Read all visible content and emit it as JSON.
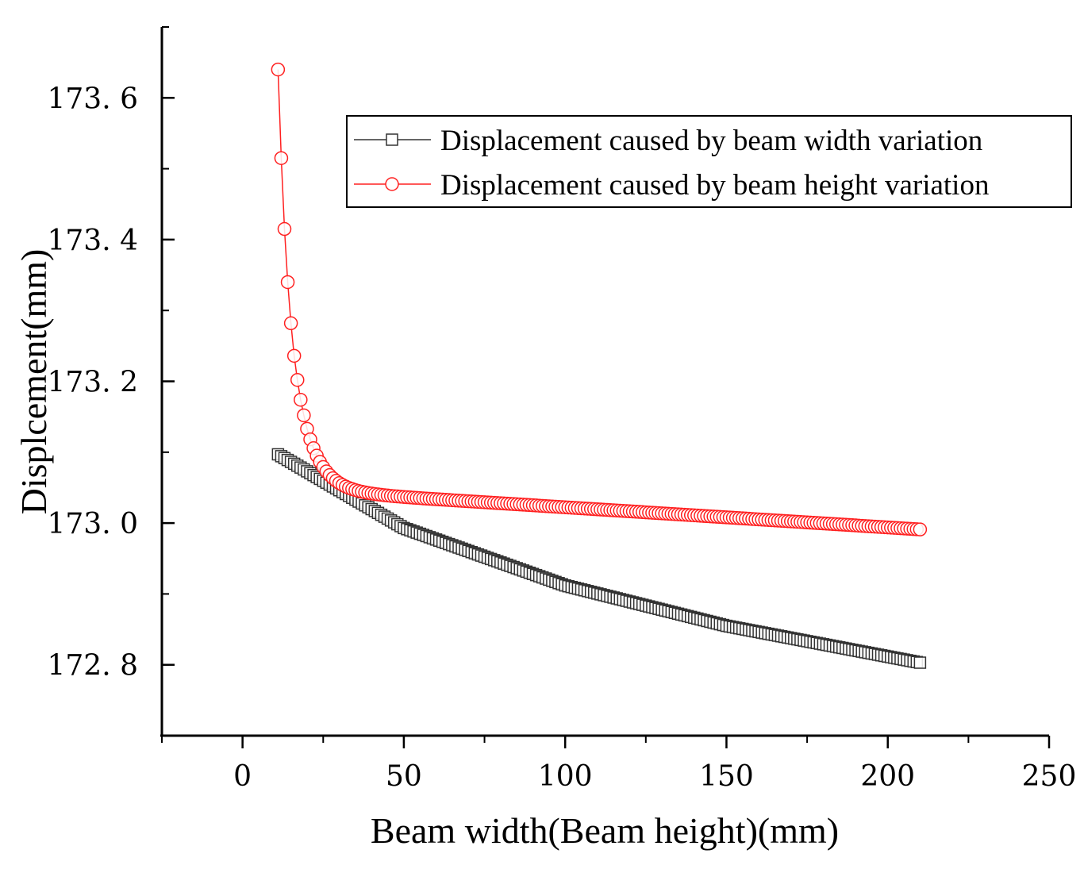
{
  "chart_data": {
    "type": "scatter",
    "title": "",
    "xlabel": "Beam width(Beam height)(mm)",
    "ylabel": "Displcement(mm)",
    "xlim": [
      -25,
      250
    ],
    "ylim": [
      172.7,
      173.7
    ],
    "xticks": [
      0,
      50,
      100,
      150,
      200,
      250
    ],
    "xtick_labels": [
      "0",
      "50",
      "100",
      "150",
      "200",
      "250"
    ],
    "yticks": [
      172.8,
      173.0,
      173.2,
      173.4,
      173.6
    ],
    "ytick_labels": [
      "172. 8",
      "173. 0",
      "173. 2",
      "173. 4",
      "173. 6"
    ],
    "grid": false,
    "legend_position": "top-right",
    "series": [
      {
        "name": "Displacement caused by beam width variation",
        "marker": "square",
        "color": "#333333",
        "x_start": 11,
        "x_end": 210,
        "x_step": 1,
        "curve": "width",
        "y_at_start": 173.097,
        "y_at_50": 172.993,
        "y_at_100": 172.912,
        "y_at_150": 172.855,
        "y_at_end": 172.803
      },
      {
        "name": "Displacement caused by beam height variation",
        "marker": "circle",
        "color": "#ff2020",
        "x_start": 11,
        "x_end": 210,
        "x_step": 1,
        "curve": "height",
        "y_at_start": 173.64,
        "y_at_12": 173.515,
        "y_at_13": 173.415,
        "y_at_14": 173.34,
        "y_at_15": 173.282,
        "y_at_16": 173.236,
        "y_at_17": 173.202,
        "y_at_18": 173.174,
        "y_at_19": 173.152,
        "y_at_20": 173.133,
        "y_at_end": 172.991
      }
    ]
  }
}
